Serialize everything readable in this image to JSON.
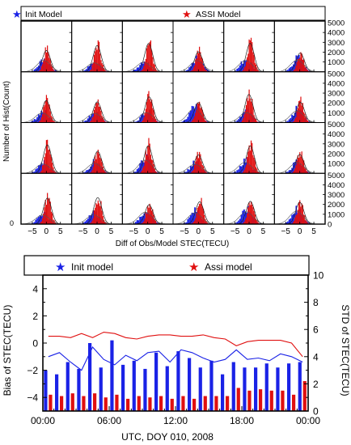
{
  "legend_top": {
    "init_label": "Init Model",
    "assi_label": "ASSI Model"
  },
  "legend_bottom": {
    "init_label": "Init model",
    "assi_label": "Assi model"
  },
  "colors": {
    "init": "#1a22e6",
    "assi": "#e01010",
    "curve": "#222222"
  },
  "hist_panel": {
    "ylabel": "Number of Hist(Count)",
    "xlabel": "Diff of Obs/Model STEC(TECU)",
    "x_ticks": [
      "-5",
      "0",
      "5"
    ],
    "y_ticks_right": [
      "0",
      "1000",
      "2000",
      "3000",
      "4000",
      "5000"
    ],
    "left_zero": "0",
    "rows": 4,
    "cols": 6
  },
  "chart_data": [
    {
      "type": "histogram_grid",
      "rows": 4,
      "cols": 6,
      "xlim": [
        -9,
        9
      ],
      "ylim": [
        0,
        5000
      ],
      "xlabel": "Diff of Obs/Model STEC(TECU)",
      "ylabel": "Number of Hist(Count)",
      "series": [
        {
          "name": "Init Model",
          "approx_peak_count": 1300,
          "approx_peak_x": -1.0,
          "approx_width_tecu": 4.0
        },
        {
          "name": "ASSI Model",
          "approx_peak_count": 2600,
          "approx_peak_x": 0.2,
          "approx_width_tecu": 1.1
        }
      ]
    },
    {
      "type": "bar_line",
      "x_unit": "UTC hour",
      "xlim": [
        0,
        24
      ],
      "x_tick_labels": [
        "00:00",
        "06:00",
        "12:00",
        "18:00",
        "00:00"
      ],
      "xlabel": "UTC, DOY 010, 2008",
      "ylabel_left": "Bias of STEC(TECU)",
      "ylabel_right": "STD of STEC(TECU)",
      "ylim_left": [
        -5,
        5
      ],
      "ylim_right": [
        0,
        10
      ],
      "y_ticks_left": [
        "-4",
        "-2",
        "0",
        "2",
        "4"
      ],
      "y_ticks_right": [
        "0",
        "2",
        "4",
        "6",
        "8",
        "10"
      ],
      "hours": [
        0.5,
        1.5,
        2.5,
        3.5,
        4.5,
        5.5,
        6.5,
        7.5,
        8.5,
        9.5,
        10.5,
        11.5,
        12.5,
        13.5,
        14.5,
        15.5,
        16.5,
        17.5,
        18.5,
        19.5,
        20.5,
        21.5,
        22.5,
        23.5
      ],
      "series": [
        {
          "name": "Init model",
          "kind": "bias_bar",
          "values": [
            -2.0,
            -2.3,
            -1.4,
            -1.9,
            0.0,
            -1.8,
            0.2,
            -1.6,
            -1.3,
            -1.9,
            -0.7,
            -1.7,
            -0.6,
            -1.1,
            -1.8,
            -1.3,
            -2.3,
            -1.4,
            -1.8,
            -1.8,
            -1.5,
            -1.8,
            -1.5,
            -1.4
          ]
        },
        {
          "name": "Assi model",
          "kind": "bias_bar",
          "values": [
            -3.8,
            -3.9,
            -3.7,
            -3.9,
            -3.7,
            -4.0,
            -3.8,
            -4.1,
            -3.9,
            -4.0,
            -3.9,
            -4.1,
            -3.9,
            -4.1,
            -3.9,
            -3.9,
            -3.9,
            -3.3,
            -3.5,
            -3.4,
            -3.5,
            -3.5,
            -3.8,
            -2.8
          ]
        },
        {
          "name": "Init model",
          "kind": "std_line",
          "values": [
            4.0,
            4.3,
            3.6,
            3.0,
            4.7,
            3.8,
            3.4,
            4.1,
            3.7,
            4.3,
            4.4,
            3.6,
            4.5,
            4.3,
            3.9,
            3.6,
            3.8,
            4.5,
            3.8,
            3.9,
            3.7,
            4.2,
            4.0,
            3.6
          ]
        },
        {
          "name": "Assi model",
          "kind": "std_line",
          "values": [
            5.5,
            5.5,
            5.4,
            5.7,
            5.4,
            5.8,
            5.7,
            5.4,
            5.3,
            5.5,
            5.6,
            5.6,
            5.5,
            5.5,
            5.6,
            5.4,
            5.3,
            4.8,
            5.1,
            5.2,
            5.2,
            5.2,
            5.0,
            4.0
          ]
        }
      ]
    }
  ]
}
